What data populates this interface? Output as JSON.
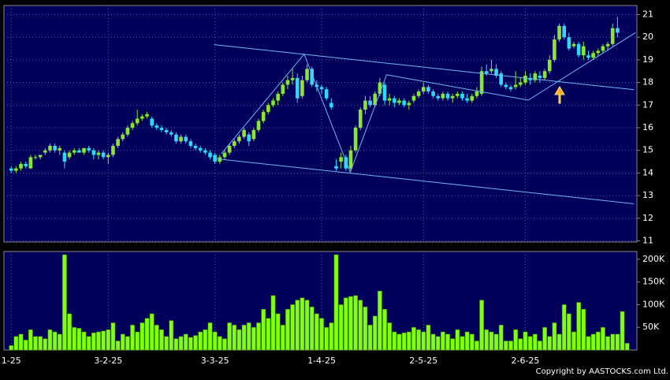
{
  "chart_data": [
    {
      "type": "candlestick",
      "ohlc": [
        [
          14.2,
          14.3,
          14.0,
          14.1
        ],
        [
          14.1,
          14.3,
          14.0,
          14.2
        ],
        [
          14.2,
          14.5,
          14.1,
          14.4
        ],
        [
          14.4,
          14.5,
          14.2,
          14.3
        ],
        [
          14.2,
          14.8,
          14.2,
          14.7
        ],
        [
          14.7,
          14.8,
          14.6,
          14.7
        ],
        [
          14.7,
          14.8,
          14.6,
          14.8
        ],
        [
          14.9,
          15.1,
          14.8,
          15.0
        ],
        [
          15.0,
          15.3,
          14.9,
          15.2
        ],
        [
          15.2,
          15.3,
          14.9,
          15.0
        ],
        [
          15.0,
          15.2,
          14.8,
          15.1
        ],
        [
          14.9,
          15.0,
          14.2,
          14.5
        ],
        [
          14.7,
          15.0,
          14.6,
          14.9
        ],
        [
          14.9,
          15.1,
          14.8,
          15.0
        ],
        [
          15.0,
          15.1,
          14.9,
          14.9
        ],
        [
          14.9,
          15.1,
          14.8,
          15.1
        ],
        [
          15.1,
          15.2,
          14.9,
          15.0
        ],
        [
          15.0,
          15.1,
          14.6,
          14.8
        ],
        [
          14.8,
          15.0,
          14.6,
          14.9
        ],
        [
          14.9,
          15.0,
          14.6,
          14.7
        ],
        [
          14.7,
          14.9,
          14.4,
          14.8
        ],
        [
          14.8,
          15.3,
          14.7,
          15.2
        ],
        [
          15.2,
          15.6,
          15.1,
          15.5
        ],
        [
          15.5,
          15.8,
          15.4,
          15.7
        ],
        [
          15.7,
          16.1,
          15.6,
          16.0
        ],
        [
          16.0,
          16.3,
          15.9,
          16.2
        ],
        [
          16.2,
          16.8,
          16.1,
          16.4
        ],
        [
          16.4,
          16.6,
          16.3,
          16.5
        ],
        [
          16.5,
          16.7,
          16.4,
          16.6
        ],
        [
          16.4,
          16.5,
          16.0,
          16.1
        ],
        [
          16.1,
          16.2,
          15.9,
          16.0
        ],
        [
          16.0,
          16.1,
          15.8,
          15.9
        ],
        [
          15.9,
          16.0,
          15.7,
          15.8
        ],
        [
          15.8,
          15.9,
          15.6,
          15.7
        ],
        [
          15.7,
          15.8,
          15.3,
          15.4
        ],
        [
          15.4,
          15.7,
          15.3,
          15.6
        ],
        [
          15.6,
          15.7,
          15.3,
          15.4
        ],
        [
          15.4,
          15.5,
          15.1,
          15.2
        ],
        [
          15.2,
          15.3,
          15.0,
          15.1
        ],
        [
          15.1,
          15.2,
          14.9,
          15.0
        ],
        [
          15.0,
          15.1,
          14.8,
          14.9
        ],
        [
          14.9,
          15.0,
          14.6,
          14.7
        ],
        [
          14.8,
          14.9,
          14.4,
          14.5
        ],
        [
          14.5,
          14.8,
          14.4,
          14.7
        ],
        [
          14.7,
          15.0,
          14.6,
          14.9
        ],
        [
          14.9,
          15.3,
          14.8,
          15.2
        ],
        [
          15.2,
          15.5,
          15.1,
          15.4
        ],
        [
          15.4,
          15.7,
          15.3,
          15.6
        ],
        [
          15.6,
          16.0,
          15.5,
          15.9
        ],
        [
          15.7,
          15.8,
          15.2,
          15.4
        ],
        [
          15.5,
          16.0,
          15.4,
          15.9
        ],
        [
          15.9,
          16.4,
          15.8,
          16.3
        ],
        [
          16.3,
          16.8,
          16.2,
          16.7
        ],
        [
          16.7,
          17.1,
          16.6,
          17.0
        ],
        [
          17.0,
          17.3,
          16.9,
          17.2
        ],
        [
          17.2,
          17.6,
          17.0,
          17.5
        ],
        [
          17.5,
          18.0,
          17.4,
          17.9
        ],
        [
          17.9,
          18.3,
          17.7,
          18.1
        ],
        [
          18.1,
          18.6,
          17.9,
          18.2
        ],
        [
          18.2,
          18.4,
          17.1,
          17.3
        ],
        [
          17.4,
          18.3,
          17.3,
          18.1
        ],
        [
          18.1,
          18.8,
          18.0,
          18.6
        ],
        [
          18.6,
          18.7,
          17.8,
          17.9
        ],
        [
          17.9,
          18.1,
          17.6,
          17.8
        ],
        [
          17.8,
          17.9,
          17.5,
          17.7
        ],
        [
          17.7,
          17.8,
          17.2,
          17.3
        ],
        [
          17.1,
          17.3,
          16.8,
          16.9
        ],
        [
          14.3,
          14.6,
          14.1,
          14.2
        ],
        [
          14.5,
          14.9,
          14.2,
          14.7
        ],
        [
          14.7,
          14.8,
          14.1,
          14.2
        ],
        [
          14.2,
          15.2,
          14.1,
          15.0
        ],
        [
          15.0,
          16.1,
          14.9,
          16.0
        ],
        [
          16.0,
          16.9,
          15.9,
          16.8
        ],
        [
          16.8,
          17.4,
          16.6,
          17.2
        ],
        [
          17.2,
          17.4,
          16.9,
          17.0
        ],
        [
          17.0,
          17.6,
          16.9,
          17.5
        ],
        [
          17.5,
          18.2,
          17.4,
          18.0
        ],
        [
          17.9,
          18.0,
          17.0,
          17.2
        ],
        [
          17.2,
          17.5,
          17.0,
          17.3
        ],
        [
          17.3,
          17.4,
          16.9,
          17.1
        ],
        [
          17.1,
          17.3,
          17.0,
          17.2
        ],
        [
          17.2,
          17.3,
          16.9,
          17.0
        ],
        [
          17.0,
          17.2,
          16.8,
          17.1
        ],
        [
          17.2,
          17.5,
          17.1,
          17.4
        ],
        [
          17.4,
          17.7,
          17.3,
          17.6
        ],
        [
          17.6,
          18.0,
          17.5,
          17.8
        ],
        [
          17.8,
          17.9,
          17.5,
          17.6
        ],
        [
          17.6,
          17.7,
          17.3,
          17.4
        ],
        [
          17.4,
          17.5,
          17.2,
          17.3
        ],
        [
          17.3,
          17.6,
          17.2,
          17.5
        ],
        [
          17.5,
          17.6,
          17.2,
          17.3
        ],
        [
          17.3,
          17.5,
          17.1,
          17.4
        ],
        [
          17.4,
          17.6,
          17.3,
          17.5
        ],
        [
          17.5,
          17.6,
          17.2,
          17.3
        ],
        [
          17.3,
          17.5,
          17.1,
          17.2
        ],
        [
          17.2,
          17.5,
          17.1,
          17.4
        ],
        [
          17.4,
          17.8,
          17.3,
          17.6
        ],
        [
          17.5,
          18.7,
          17.4,
          18.5
        ],
        [
          18.5,
          18.8,
          18.3,
          18.4
        ],
        [
          18.5,
          19.0,
          18.4,
          18.6
        ],
        [
          18.6,
          18.8,
          18.2,
          18.3
        ],
        [
          18.4,
          18.5,
          17.8,
          17.9
        ],
        [
          17.9,
          18.0,
          17.7,
          17.8
        ],
        [
          17.8,
          17.9,
          17.6,
          17.7
        ],
        [
          17.8,
          18.5,
          17.7,
          17.9
        ],
        [
          17.9,
          18.2,
          17.8,
          18.0
        ],
        [
          18.0,
          18.5,
          17.9,
          18.3
        ],
        [
          18.2,
          18.4,
          17.9,
          18.1
        ],
        [
          18.1,
          18.5,
          18.0,
          18.4
        ],
        [
          18.3,
          18.5,
          18.0,
          18.2
        ],
        [
          18.2,
          18.6,
          18.1,
          18.5
        ],
        [
          18.5,
          19.2,
          18.4,
          19.0
        ],
        [
          19.0,
          20.1,
          18.9,
          19.9
        ],
        [
          19.9,
          20.6,
          19.8,
          20.5
        ],
        [
          20.5,
          20.6,
          19.9,
          20.0
        ],
        [
          20.0,
          20.2,
          19.4,
          19.5
        ],
        [
          19.6,
          19.8,
          19.5,
          19.7
        ],
        [
          19.7,
          19.8,
          19.1,
          19.2
        ],
        [
          19.2,
          19.8,
          19.0,
          19.6
        ],
        [
          19.2,
          19.4,
          19.0,
          19.1
        ],
        [
          19.1,
          19.4,
          19.0,
          19.3
        ],
        [
          19.3,
          19.5,
          19.2,
          19.4
        ],
        [
          19.4,
          19.7,
          19.3,
          19.6
        ],
        [
          19.6,
          19.8,
          19.4,
          19.7
        ],
        [
          19.7,
          20.6,
          19.6,
          20.4
        ],
        [
          20.4,
          20.9,
          20.0,
          20.2
        ]
      ],
      "up_color": "#88e830",
      "down_color": "#30d8ff",
      "trendlines": [
        {
          "x": [
            41.8,
            128.4
          ],
          "y": [
            19.67,
            17.68
          ]
        },
        {
          "x": [
            41.8,
            128.4
          ],
          "y": [
            14.64,
            12.64
          ]
        },
        {
          "x": [
            43.3,
            60.4,
            69.9,
            77.4,
            106.6,
            128.7
          ],
          "y": [
            14.85,
            19.25,
            14.04,
            18.34,
            17.22,
            20.2
          ]
        }
      ],
      "line_color": "#70b8f0",
      "xlim": [
        -1.5,
        129
      ],
      "ylim": [
        10.95,
        21.4
      ],
      "yticks": [
        11,
        12,
        13,
        14,
        15,
        16,
        17,
        18,
        19,
        20,
        21
      ],
      "xticks": [
        {
          "value": 0,
          "label": "1-25"
        },
        {
          "value": 20,
          "label": "3-2-25"
        },
        {
          "value": 42,
          "label": "3-3-25"
        },
        {
          "value": 64,
          "label": "1-4-25"
        },
        {
          "value": 85,
          "label": "2-5-25"
        },
        {
          "value": 106,
          "label": "2-6-25"
        }
      ],
      "grid": true
    },
    {
      "type": "bar",
      "values": [
        10000,
        30000,
        35000,
        22000,
        45000,
        30000,
        30000,
        25000,
        45000,
        40000,
        35000,
        210000,
        80000,
        50000,
        48000,
        40000,
        30000,
        38000,
        40000,
        42000,
        45000,
        60000,
        20000,
        35000,
        30000,
        55000,
        40000,
        60000,
        70000,
        80000,
        55000,
        45000,
        30000,
        65000,
        25000,
        30000,
        35000,
        28000,
        32000,
        40000,
        45000,
        60000,
        40000,
        30000,
        25000,
        60000,
        55000,
        45000,
        55000,
        60000,
        50000,
        60000,
        90000,
        70000,
        120000,
        80000,
        55000,
        90000,
        100000,
        110000,
        115000,
        110000,
        95000,
        80000,
        70000,
        50000,
        60000,
        210000,
        100000,
        115000,
        118000,
        120000,
        110000,
        95000,
        55000,
        75000,
        130000,
        90000,
        60000,
        40000,
        35000,
        38000,
        40000,
        50000,
        45000,
        40000,
        55000,
        35000,
        30000,
        40000,
        35000,
        25000,
        45000,
        30000,
        40000,
        35000,
        20000,
        110000,
        45000,
        40000,
        35000,
        55000,
        20000,
        20000,
        45000,
        25000,
        40000,
        30000,
        35000,
        20000,
        50000,
        30000,
        60000,
        35000,
        100000,
        80000,
        40000,
        105000,
        90000,
        30000,
        35000,
        40000,
        50000,
        30000,
        35000,
        35000,
        85000,
        15000
      ],
      "color": "#80ff10",
      "xlim": [
        -1.5,
        129
      ],
      "ylim": [
        0,
        217000
      ],
      "yticks": [
        {
          "value": 50000,
          "label": "50K"
        },
        {
          "value": 100000,
          "label": "100K"
        },
        {
          "value": 150000,
          "label": "150K"
        },
        {
          "value": 200000,
          "label": "200K"
        }
      ]
    }
  ],
  "copyright": "Copyright by AASTOCKS.com Ltd."
}
